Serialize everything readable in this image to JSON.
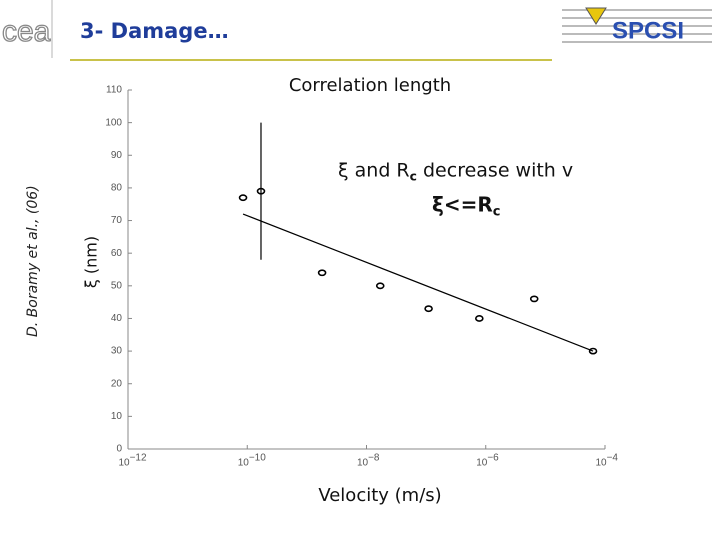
{
  "slide": {
    "title": "3- Damage…",
    "logo_left": "cea",
    "logo_right": "SPCSI",
    "citation": "D. Boramy et al., (06)"
  },
  "chart_data": {
    "type": "scatter",
    "title": "Correlation length",
    "xlabel": "Velocity (m/s)",
    "ylabel": "ξ (nm)",
    "xscale": "log",
    "xlim": [
      1e-12,
      0.0001
    ],
    "xticks": [
      {
        "value": 1e-12,
        "label": "10",
        "exponent": "−12"
      },
      {
        "value": 1e-10,
        "label": "10",
        "exponent": "−10"
      },
      {
        "value": 1e-08,
        "label": "10",
        "exponent": "−8"
      },
      {
        "value": 1e-06,
        "label": "10",
        "exponent": "−6"
      },
      {
        "value": 0.0001,
        "label": "10",
        "exponent": "−4"
      }
    ],
    "ylim": [
      0,
      110
    ],
    "yticks": [
      0,
      10,
      20,
      30,
      40,
      50,
      60,
      70,
      80,
      90,
      100,
      110
    ],
    "series": [
      {
        "color": "#000000",
        "x": [
          8.5e-11,
          1.7e-10,
          1.8e-09,
          1.7e-08,
          1.1e-07,
          7.8e-07,
          6.5e-06,
          6.3e-05
        ],
        "values": [
          77,
          79,
          54,
          50,
          43,
          40,
          46,
          30
        ],
        "errors": [
          null,
          21,
          null,
          null,
          null,
          null,
          null,
          null
        ]
      }
    ],
    "fit": {
      "x": [
        8.5e-11,
        6.3e-05
      ],
      "values": [
        72,
        30
      ]
    },
    "annotations": [
      {
        "text": "ξ and R",
        "sub": "c",
        "after": " decrease with v"
      },
      {
        "text": "ξ<=R",
        "sub": "c"
      }
    ]
  }
}
